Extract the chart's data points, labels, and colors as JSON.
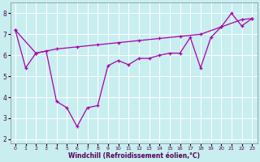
{
  "xlabel": "Windchill (Refroidissement éolien,°C)",
  "x_ticks": [
    0,
    1,
    2,
    3,
    4,
    5,
    6,
    7,
    8,
    9,
    10,
    11,
    12,
    13,
    14,
    15,
    16,
    17,
    18,
    19,
    20,
    21,
    22,
    23
  ],
  "y_ticks": [
    2,
    3,
    4,
    5,
    6,
    7,
    8
  ],
  "xlim": [
    -0.5,
    23.5
  ],
  "ylim": [
    1.8,
    8.5
  ],
  "bg_color": "#c8eef0",
  "line_color": "#aa00aa",
  "grid_color": "#ffffff",
  "line1_x": [
    0,
    1,
    2,
    3,
    4,
    5,
    6,
    7,
    8,
    9,
    10,
    11,
    12,
    13,
    14,
    15,
    16,
    17,
    18,
    19,
    20,
    21,
    22,
    23
  ],
  "line1_y": [
    7.2,
    5.4,
    6.1,
    6.2,
    3.8,
    3.5,
    2.6,
    3.5,
    3.6,
    5.5,
    5.75,
    5.55,
    5.85,
    5.85,
    6.0,
    6.1,
    6.1,
    6.85,
    5.4,
    6.85,
    7.35,
    8.0,
    7.4,
    7.75
  ],
  "line2_x": [
    0,
    2,
    4,
    6,
    8,
    10,
    12,
    14,
    16,
    18,
    20,
    22,
    23
  ],
  "line2_y": [
    7.2,
    6.1,
    6.3,
    6.4,
    6.5,
    6.6,
    6.7,
    6.8,
    6.9,
    7.0,
    7.35,
    7.7,
    7.75
  ]
}
